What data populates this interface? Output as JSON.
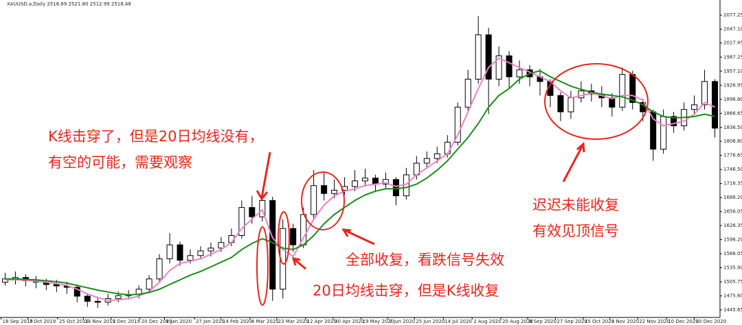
{
  "chart_data": {
    "type": "candlestick",
    "title": "XAUUSD.a,Daily 2516.69 2521.80 2512.99 2518.48",
    "open": [
      1505,
      1512,
      1515,
      1508,
      1505,
      1500,
      1497,
      1494,
      1475,
      1464,
      1462,
      1470,
      1476,
      1478,
      1490,
      1512,
      1555,
      1585,
      1552,
      1562,
      1572,
      1578,
      1590,
      1605,
      1665,
      1645,
      1680,
      1490,
      1620,
      1585,
      1650,
      1712,
      1695,
      1702,
      1710,
      1722,
      1728,
      1715,
      1725,
      1690,
      1735,
      1760,
      1770,
      1780,
      1805,
      1880,
      1940,
      2035,
      1940,
      1990,
      1945,
      1960,
      1945,
      1935,
      1905,
      1870,
      1900,
      1915,
      1908,
      1900,
      1880,
      1950,
      1890,
      1870,
      1790,
      1860,
      1840,
      1875,
      1885,
      1935
    ],
    "high": [
      1525,
      1528,
      1522,
      1518,
      1512,
      1510,
      1506,
      1500,
      1480,
      1474,
      1480,
      1485,
      1488,
      1498,
      1520,
      1565,
      1610,
      1592,
      1575,
      1582,
      1590,
      1602,
      1620,
      1680,
      1690,
      1700,
      1688,
      1640,
      1630,
      1665,
      1745,
      1740,
      1725,
      1730,
      1745,
      1748,
      1735,
      1740,
      1730,
      1750,
      1775,
      1785,
      1795,
      1820,
      1890,
      1960,
      2075,
      2050,
      2010,
      2000,
      1980,
      1970,
      1962,
      1940,
      1912,
      1915,
      1935,
      1930,
      1925,
      1910,
      1965,
      1958,
      1898,
      1875,
      1875,
      1870,
      1890,
      1905,
      1960,
      1940
    ],
    "low": [
      1498,
      1500,
      1496,
      1492,
      1488,
      1484,
      1480,
      1462,
      1452,
      1450,
      1455,
      1462,
      1468,
      1470,
      1485,
      1505,
      1545,
      1540,
      1545,
      1555,
      1560,
      1570,
      1582,
      1598,
      1630,
      1635,
      1465,
      1470,
      1570,
      1578,
      1640,
      1680,
      1685,
      1692,
      1700,
      1710,
      1698,
      1705,
      1670,
      1682,
      1725,
      1748,
      1760,
      1772,
      1798,
      1870,
      1930,
      1865,
      1925,
      1920,
      1930,
      1925,
      1905,
      1880,
      1850,
      1855,
      1890,
      1892,
      1880,
      1860,
      1872,
      1875,
      1850,
      1765,
      1780,
      1825,
      1830,
      1865,
      1875,
      1815
    ],
    "close": [
      1512,
      1515,
      1508,
      1505,
      1500,
      1497,
      1494,
      1475,
      1464,
      1462,
      1470,
      1476,
      1478,
      1490,
      1512,
      1555,
      1585,
      1552,
      1562,
      1572,
      1578,
      1590,
      1605,
      1665,
      1645,
      1680,
      1490,
      1620,
      1585,
      1650,
      1712,
      1695,
      1702,
      1710,
      1722,
      1728,
      1715,
      1725,
      1690,
      1735,
      1760,
      1770,
      1780,
      1805,
      1880,
      1940,
      2035,
      1940,
      1990,
      1945,
      1960,
      1945,
      1935,
      1905,
      1870,
      1900,
      1915,
      1908,
      1900,
      1880,
      1950,
      1890,
      1870,
      1790,
      1860,
      1840,
      1875,
      1885,
      1935,
      1835
    ],
    "lines": [
      {
        "color": "#ee82c8",
        "values": [
          1510,
          1510,
          1509,
          1507,
          1505,
          1502,
          1498,
          1490,
          1480,
          1472,
          1466,
          1467,
          1470,
          1475,
          1485,
          1505,
          1530,
          1545,
          1550,
          1555,
          1565,
          1575,
          1590,
          1620,
          1640,
          1660,
          1600,
          1575,
          1560,
          1600,
          1640,
          1670,
          1690,
          1700,
          1705,
          1712,
          1715,
          1718,
          1710,
          1715,
          1735,
          1750,
          1765,
          1780,
          1820,
          1870,
          1920,
          1965,
          1985,
          1975,
          1965,
          1955,
          1945,
          1935,
          1915,
          1900,
          1905,
          1910,
          1905,
          1898,
          1905,
          1905,
          1895,
          1855,
          1840,
          1845,
          1850,
          1865,
          1890,
          1880
        ]
      },
      {
        "color": "#1a8a1a",
        "values": [
          1512,
          1512,
          1511,
          1510,
          1508,
          1506,
          1503,
          1498,
          1493,
          1488,
          1484,
          1480,
          1478,
          1479,
          1483,
          1490,
          1500,
          1510,
          1520,
          1528,
          1538,
          1548,
          1558,
          1575,
          1588,
          1598,
          1590,
          1578,
          1575,
          1585,
          1605,
          1630,
          1650,
          1665,
          1680,
          1692,
          1700,
          1705,
          1705,
          1708,
          1715,
          1728,
          1745,
          1765,
          1790,
          1815,
          1845,
          1880,
          1905,
          1920,
          1940,
          1952,
          1958,
          1945,
          1935,
          1925,
          1918,
          1912,
          1908,
          1905,
          1902,
          1895,
          1885,
          1870,
          1860,
          1857,
          1858,
          1860,
          1865,
          1860
        ]
      }
    ],
    "xlim": [
      0,
      70
    ],
    "xticks": [
      {
        "value": 0.1,
        "label": "18 Sep 2019"
      },
      {
        "value": 2.7,
        "label": "7 Oct 2019"
      },
      {
        "value": 5.6,
        "label": "25 Oct 2019"
      },
      {
        "value": 8.1,
        "label": "13 Nov 2019"
      },
      {
        "value": 10.8,
        "label": "2 Dec 2019"
      },
      {
        "value": 13.6,
        "label": "20 Dec 2019"
      },
      {
        "value": 16,
        "label": "8 Jan 2020"
      },
      {
        "value": 18.9,
        "label": "27 Jan 2020"
      },
      {
        "value": 21.5,
        "label": "14 Feb 2020"
      },
      {
        "value": 24.3,
        "label": "4 Mar 2020"
      },
      {
        "value": 26.9,
        "label": "23 Mar 2020"
      },
      {
        "value": 29.7,
        "label": "12 Apr 2020"
      },
      {
        "value": 32.4,
        "label": "30 Apr 2020"
      },
      {
        "value": 35.1,
        "label": "19 May 2020"
      },
      {
        "value": 37.7,
        "label": "7 Jun 2020"
      },
      {
        "value": 40.3,
        "label": "25 Jun 2020"
      },
      {
        "value": 43.1,
        "label": "14 Jul 2020"
      },
      {
        "value": 45.9,
        "label": "2 Aug 2020"
      },
      {
        "value": 48.7,
        "label": "20 Aug 2020"
      },
      {
        "value": 51.3,
        "label": "8 Sep 2020"
      },
      {
        "value": 54,
        "label": "27 Sep 2020"
      },
      {
        "value": 56.7,
        "label": "15 Oct 2020"
      },
      {
        "value": 59.3,
        "label": "3 Nov 2020"
      },
      {
        "value": 62,
        "label": "22 Nov 2020"
      },
      {
        "value": 64.8,
        "label": "10 Dec 2020"
      },
      {
        "value": 67.5,
        "label": "30 Dec 2020"
      }
    ],
    "ylim": [
      1429.4,
      2109.6
    ],
    "yticks": [
      2077.25,
      {
        "value": 2047.1,
        "label": "2047.10"
      },
      2017.45,
      1987.25,
      {
        "value": 1957.1,
        "label": "1957.10"
      },
      1926.95,
      {
        "value": 1896.8,
        "label": "1896.80"
      },
      1866.65,
      {
        "value": 1836.5,
        "label": "1836.50"
      },
      {
        "value": 1806.8,
        "label": "1806.80"
      },
      1776.65,
      {
        "value": 1746.5,
        "label": "1746.50"
      },
      1716.35,
      {
        "value": 1686.2,
        "label": "1686.20"
      },
      1656.05,
      1626.35,
      {
        "value": 1596.2,
        "label": "1596.20"
      },
      1566.05,
      {
        "value": 1535.9,
        "label": "1535.90"
      },
      1505.75,
      {
        "value": 1475.6,
        "label": "1475.60"
      },
      1445.65
    ],
    "annotations": [
      "K线击穿了，但是20日均线没有，",
      "有空的可能，需要观察",
      "迟迟未能收复",
      "有效见顶信号",
      "全部收复，看跌信号失效",
      "20日均线击穿，但是K线收复"
    ],
    "annotation_color": "#e8251c"
  }
}
